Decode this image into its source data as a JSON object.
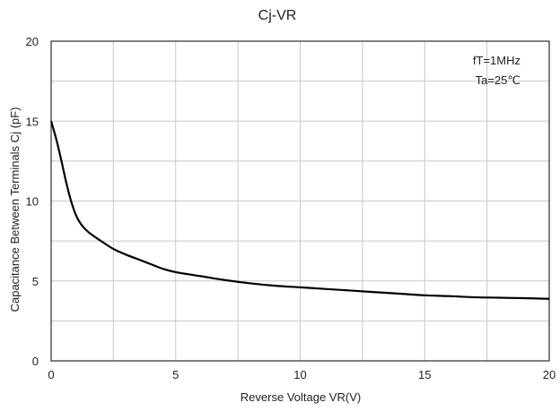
{
  "chart_data": {
    "type": "line",
    "title": "Cj-VR",
    "xlabel": "Reverse Voltage   VR(V)",
    "ylabel": "Capacitance Between Terminals Cj (pF)",
    "xlim": [
      0,
      20
    ],
    "ylim": [
      0,
      20
    ],
    "xticks": [
      0,
      5,
      10,
      15,
      20
    ],
    "yticks": [
      0,
      5,
      10,
      15,
      20
    ],
    "grid": true,
    "annotations": [
      "fT=1MHz",
      "Ta=25℃"
    ],
    "series": [
      {
        "color": "#000000",
        "x": [
          0,
          0.2,
          0.4,
          0.6,
          0.8,
          1.0,
          1.2,
          1.5,
          2.0,
          2.5,
          3.0,
          3.5,
          4.0,
          4.5,
          5.0,
          6.0,
          7.0,
          8.0,
          9.0,
          10.0,
          11.0,
          12.0,
          13.0,
          14.0,
          15.0,
          16.0,
          17.0,
          18.0,
          19.0,
          20.0
        ],
        "y": [
          15.0,
          13.9,
          12.6,
          11.2,
          10.0,
          9.1,
          8.55,
          8.05,
          7.5,
          7.0,
          6.65,
          6.35,
          6.05,
          5.75,
          5.55,
          5.3,
          5.05,
          4.85,
          4.7,
          4.6,
          4.5,
          4.4,
          4.3,
          4.2,
          4.1,
          4.05,
          3.98,
          3.95,
          3.92,
          3.88
        ]
      }
    ]
  }
}
